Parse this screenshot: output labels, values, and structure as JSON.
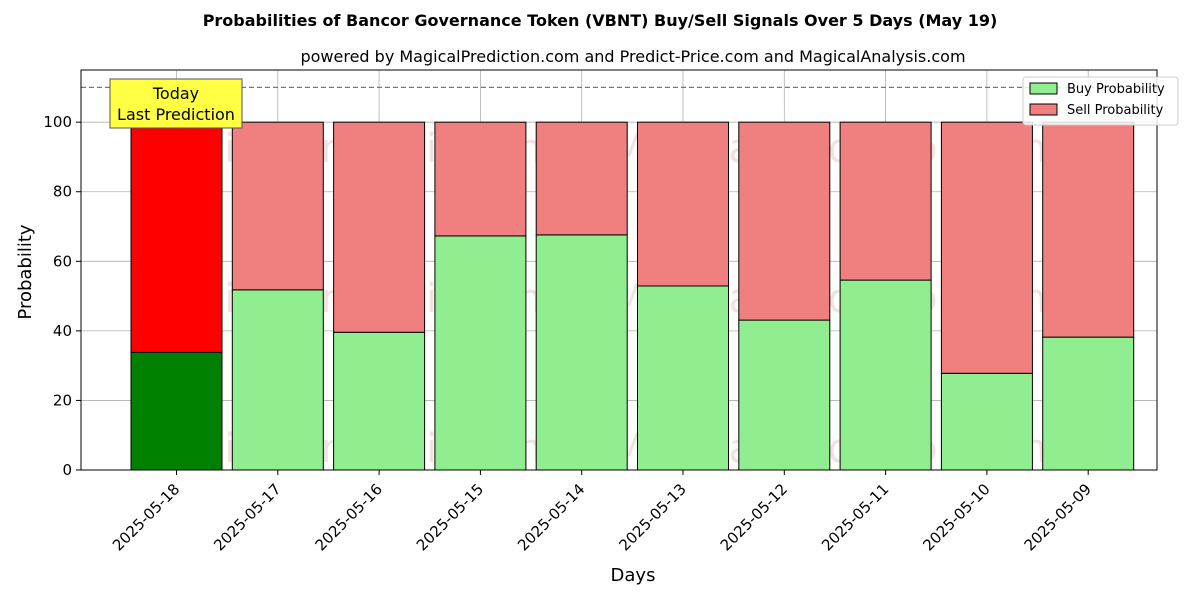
{
  "chart_data": {
    "type": "bar",
    "stacked": true,
    "title": "Probabilities of Bancor Governance Token (VBNT) Buy/Sell Signals Over 5 Days (May 19)",
    "subtitle": "powered by MagicalPrediction.com and Predict-Price.com and MagicalAnalysis.com",
    "xlabel": "Days",
    "ylabel": "Probability",
    "ylim": [
      0,
      115
    ],
    "yticks": [
      0,
      20,
      40,
      60,
      80,
      100
    ],
    "grid": true,
    "legend_position": "top-right",
    "reference_line": 110,
    "categories": [
      "2025-05-18",
      "2025-05-17",
      "2025-05-16",
      "2025-05-15",
      "2025-05-14",
      "2025-05-13",
      "2025-05-12",
      "2025-05-11",
      "2025-05-10",
      "2025-05-09"
    ],
    "series": [
      {
        "name": "Buy Probability",
        "color": "#90ee90",
        "highlight_color": "#008000",
        "values": [
          33.8,
          51.8,
          39.6,
          67.3,
          67.6,
          52.9,
          43.1,
          54.6,
          27.8,
          38.2
        ]
      },
      {
        "name": "Sell Probability",
        "color": "#f08080",
        "highlight_color": "#ff0000",
        "values": [
          66.2,
          48.2,
          60.4,
          32.7,
          32.4,
          47.1,
          56.9,
          45.4,
          72.2,
          61.8
        ]
      }
    ],
    "annotation": {
      "line1": "Today",
      "line2": "Last Prediction",
      "background": "#ffff44"
    },
    "watermarks": [
      "MagicalAnalysis.com",
      "MagicalPrediction.com"
    ]
  }
}
